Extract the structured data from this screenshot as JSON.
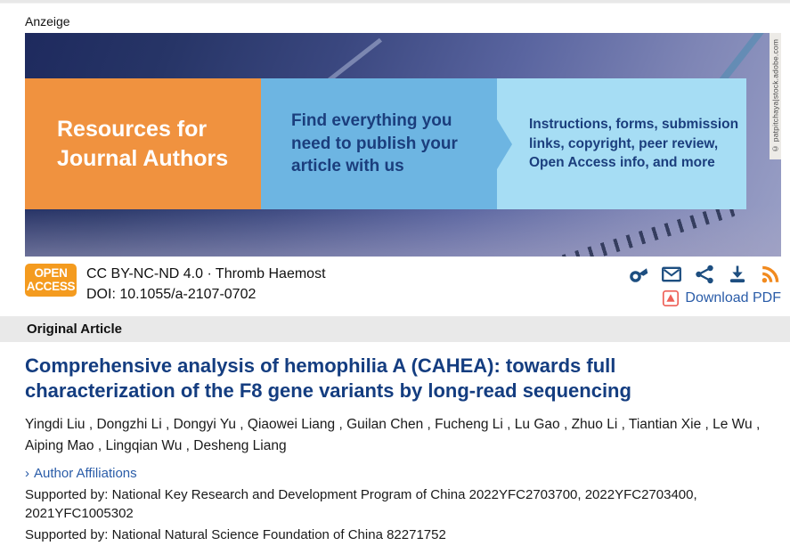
{
  "page": {
    "ad_label": "Anzeige"
  },
  "banner": {
    "orange_box_text": "Resources for Journal Authors",
    "mid_box_text": "Find everything you need to publish your article with us",
    "light_box_text": "Instructions, forms, submission links, copyright, peer review, Open Access info, and more",
    "photo_credit": "© patpitchaya|stock.adobe.com",
    "colors": {
      "orange": "#f0923f",
      "mid_blue": "#6db5e2",
      "light_blue": "#a6ddf4",
      "text_navy": "#1b3e7d"
    }
  },
  "theme": {
    "title_navy": "#143d80",
    "link_blue": "#2a5ca8",
    "icon_navy": "#1d4e80",
    "rss_orange": "#f18a1f",
    "badge_orange": "#f49b1f",
    "pdf_red": "#ee6058"
  },
  "meta": {
    "open_access_badge": {
      "line1": "OPEN",
      "line2": "ACCESS"
    },
    "license_line": "CC BY-NC-ND 4.0 · Thromb Haemost",
    "doi_line": "DOI: 10.1055/a-2107-0702",
    "download_pdf_label": "Download PDF",
    "icons": [
      "key-icon",
      "email-icon",
      "share-icon",
      "download-icon",
      "rss-icon"
    ]
  },
  "article": {
    "category": "Original Article",
    "title": "Comprehensive analysis of hemophilia A (CAHEA): towards full characterization of the F8 gene variants by long-read sequencing",
    "authors": [
      "Yingdi Liu",
      "Dongzhi Li",
      "Dongyi Yu",
      "Qiaowei Liang",
      "Guilan Chen",
      "Fucheng Li",
      "Lu Gao",
      "Zhuo Li",
      "Tiantian Xie",
      "Le Wu",
      "Aiping Mao",
      "Lingqian Wu",
      "Desheng Liang"
    ],
    "author_separator": " , ",
    "affiliations_link": {
      "marker": "›",
      "label": "Author Affiliations"
    },
    "supported_by": [
      "Supported by: National Key Research and Development Program of China 2022YFC2703700, 2022YFC2703400, 2021YFC1005302",
      "Supported by: National Natural Science Foundation of China 82271752"
    ]
  }
}
